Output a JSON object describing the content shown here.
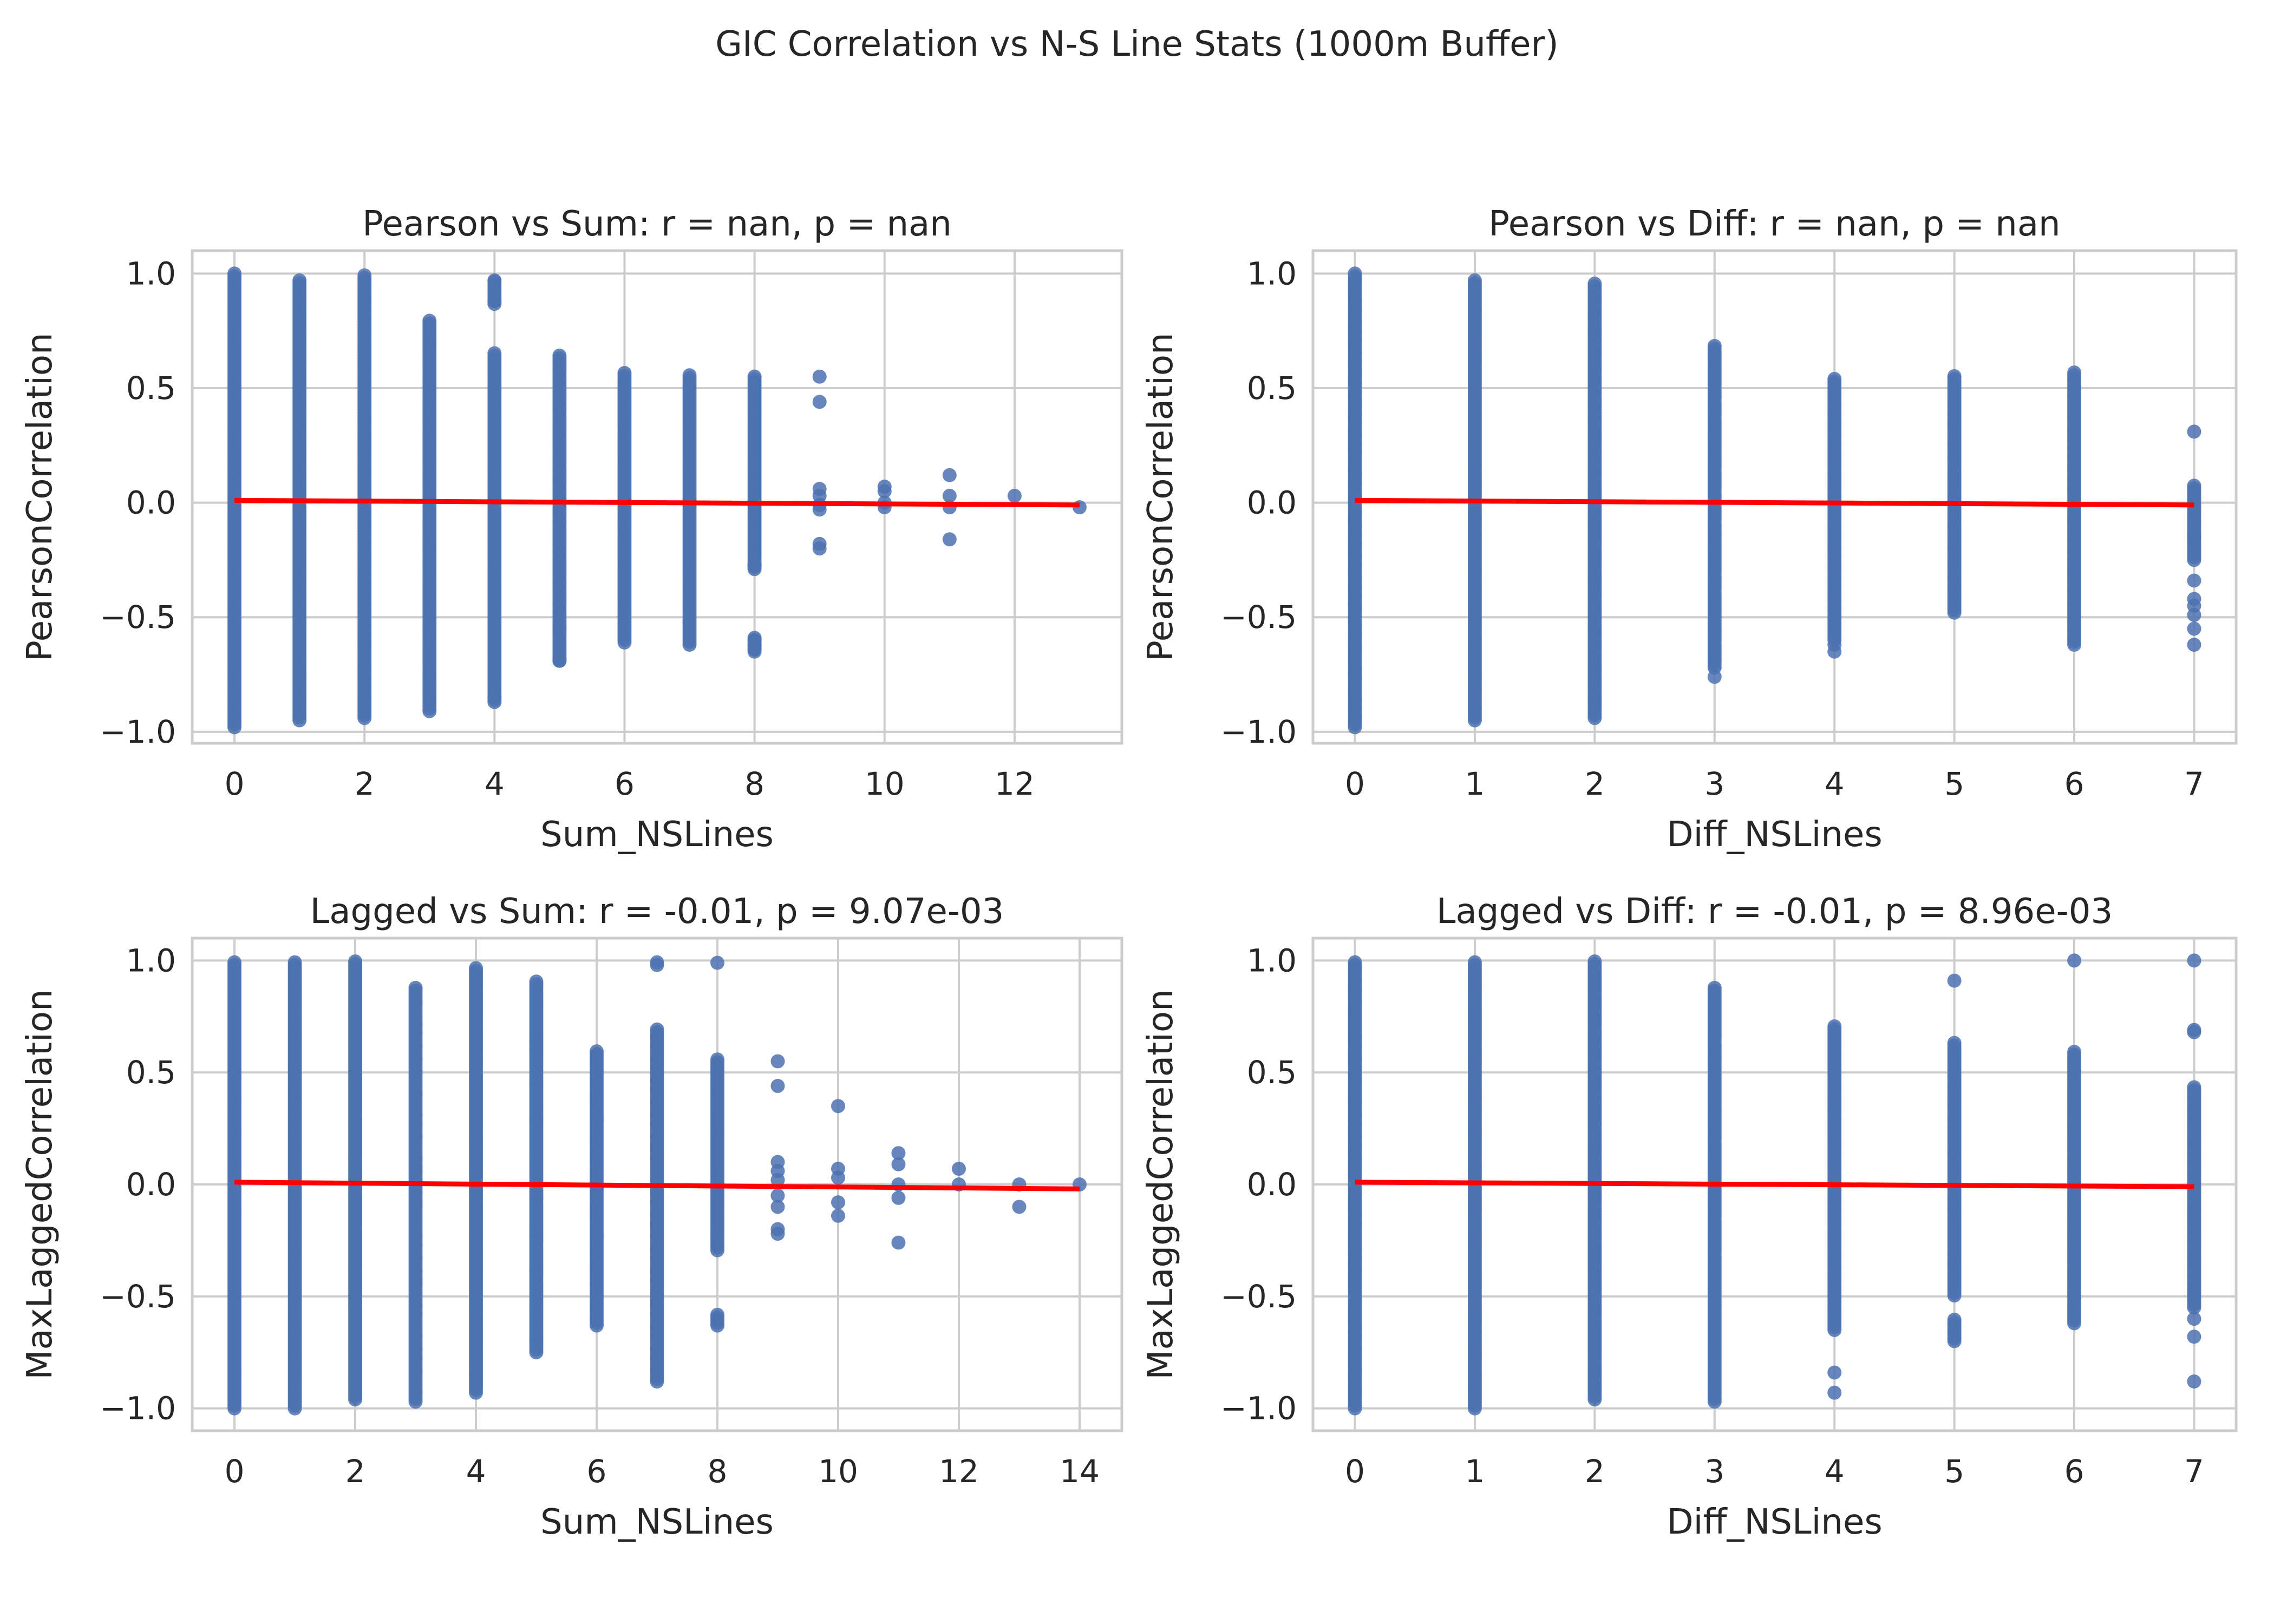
{
  "figure": {
    "title": "GIC Correlation vs N-S Line Stats (1000m Buffer)"
  },
  "colors": {
    "points": "#4c72b0",
    "regression": "#ff0000",
    "grid": "#cccccc",
    "axes_edge": "#cccccc",
    "text": "#262626"
  },
  "chart_data": [
    {
      "type": "scatter",
      "title": "Pearson vs Sum: r = nan, p = nan",
      "xlabel": "Sum_NSLines",
      "ylabel": "PearsonCorrelation",
      "xlim": [
        -0.65,
        13.65
      ],
      "ylim": [
        -1.05,
        1.1
      ],
      "xticks": [
        0,
        2,
        4,
        6,
        8,
        10,
        12
      ],
      "yticks": [
        -1.0,
        -0.5,
        0.0,
        0.5,
        1.0
      ],
      "ytick_labels": [
        "−1.0",
        "−0.5",
        "0.0",
        "0.5",
        "1.0"
      ],
      "grid": true,
      "regression": {
        "x": [
          0,
          13
        ],
        "y": [
          0.01,
          -0.01
        ]
      },
      "columns": [
        {
          "x": 0,
          "min": -0.98,
          "max": 1.0
        },
        {
          "x": 1,
          "min": -0.95,
          "max": 0.97
        },
        {
          "x": 2,
          "min": -0.94,
          "max": 1.0
        },
        {
          "x": 3,
          "min": -0.91,
          "max": 0.8
        },
        {
          "x": 4,
          "min": -0.86,
          "max": 0.97,
          "gaps": [
            [
              0.66,
              0.86
            ]
          ]
        },
        {
          "x": 5,
          "min": -0.69,
          "max": 0.65
        },
        {
          "x": 6,
          "min": -0.61,
          "max": 0.57
        },
        {
          "x": 7,
          "min": -0.62,
          "max": 0.56
        },
        {
          "x": 8,
          "min": -0.65,
          "max": 0.55,
          "gaps": [
            [
              -0.58,
              -0.3
            ]
          ]
        }
      ],
      "points": [
        {
          "x": 4,
          "y": 0.88
        },
        {
          "x": 4,
          "y": 0.97
        },
        {
          "x": 4,
          "y": -0.85
        },
        {
          "x": 4,
          "y": -0.87
        },
        {
          "x": 5,
          "y": -0.68
        },
        {
          "x": 5,
          "y": -0.69
        },
        {
          "x": 5,
          "y": -0.55
        },
        {
          "x": 8,
          "y": -0.6
        },
        {
          "x": 8,
          "y": -0.62
        },
        {
          "x": 8,
          "y": -0.64
        },
        {
          "x": 8,
          "y": -0.27
        },
        {
          "x": 8,
          "y": -0.28
        },
        {
          "x": 9,
          "y": 0.55
        },
        {
          "x": 9,
          "y": 0.44
        },
        {
          "x": 9,
          "y": 0.06
        },
        {
          "x": 9,
          "y": 0.03
        },
        {
          "x": 9,
          "y": -0.01
        },
        {
          "x": 9,
          "y": -0.03
        },
        {
          "x": 9,
          "y": -0.18
        },
        {
          "x": 9,
          "y": -0.2
        },
        {
          "x": 10,
          "y": 0.07
        },
        {
          "x": 10,
          "y": 0.05
        },
        {
          "x": 10,
          "y": 0.0
        },
        {
          "x": 10,
          "y": -0.02
        },
        {
          "x": 11,
          "y": 0.12
        },
        {
          "x": 11,
          "y": 0.03
        },
        {
          "x": 11,
          "y": -0.02
        },
        {
          "x": 11,
          "y": -0.16
        },
        {
          "x": 12,
          "y": 0.03
        },
        {
          "x": 13,
          "y": -0.02
        }
      ]
    },
    {
      "type": "scatter",
      "title": "Pearson vs Diff: r = nan, p = nan",
      "xlabel": "Diff_NSLines",
      "ylabel": "PearsonCorrelation",
      "xlim": [
        -0.35,
        7.35
      ],
      "ylim": [
        -1.05,
        1.1
      ],
      "xticks": [
        0,
        1,
        2,
        3,
        4,
        5,
        6,
        7
      ],
      "yticks": [
        -1.0,
        -0.5,
        0.0,
        0.5,
        1.0
      ],
      "ytick_labels": [
        "−1.0",
        "−0.5",
        "0.0",
        "0.5",
        "1.0"
      ],
      "grid": true,
      "regression": {
        "x": [
          0,
          7
        ],
        "y": [
          0.01,
          -0.01
        ]
      },
      "columns": [
        {
          "x": 0,
          "min": -0.98,
          "max": 1.0
        },
        {
          "x": 1,
          "min": -0.95,
          "max": 0.97
        },
        {
          "x": 2,
          "min": -0.94,
          "max": 0.96
        },
        {
          "x": 3,
          "min": -0.72,
          "max": 0.69
        },
        {
          "x": 4,
          "min": -0.6,
          "max": 0.55
        },
        {
          "x": 5,
          "min": -0.48,
          "max": 0.56
        },
        {
          "x": 6,
          "min": -0.62,
          "max": 0.57
        },
        {
          "x": 7,
          "min": -0.25,
          "max": 0.08
        }
      ],
      "points": [
        {
          "x": 3,
          "y": -0.76
        },
        {
          "x": 4,
          "y": -0.62
        },
        {
          "x": 4,
          "y": -0.65
        },
        {
          "x": 7,
          "y": 0.31
        },
        {
          "x": 7,
          "y": -0.15
        },
        {
          "x": 7,
          "y": -0.34
        },
        {
          "x": 7,
          "y": -0.42
        },
        {
          "x": 7,
          "y": -0.45
        },
        {
          "x": 7,
          "y": -0.49
        },
        {
          "x": 7,
          "y": -0.55
        },
        {
          "x": 7,
          "y": -0.62
        }
      ]
    },
    {
      "type": "scatter",
      "title": "Lagged vs Sum: r = -0.01, p = 9.07e-03",
      "xlabel": "Sum_NSLines",
      "ylabel": "MaxLaggedCorrelation",
      "xlim": [
        -0.7,
        14.7
      ],
      "ylim": [
        -1.1,
        1.1
      ],
      "xticks": [
        0,
        2,
        4,
        6,
        8,
        10,
        12,
        14
      ],
      "yticks": [
        -1.0,
        -0.5,
        0.0,
        0.5,
        1.0
      ],
      "ytick_labels": [
        "−1.0",
        "−0.5",
        "0.0",
        "0.5",
        "1.0"
      ],
      "grid": true,
      "regression": {
        "x": [
          0,
          14
        ],
        "y": [
          0.01,
          -0.02
        ]
      },
      "columns": [
        {
          "x": 0,
          "min": -1.0,
          "max": 1.0
        },
        {
          "x": 1,
          "min": -1.0,
          "max": 1.0
        },
        {
          "x": 2,
          "min": -0.96,
          "max": 1.0
        },
        {
          "x": 3,
          "min": -0.97,
          "max": 0.88
        },
        {
          "x": 4,
          "min": -0.93,
          "max": 0.97
        },
        {
          "x": 5,
          "min": -0.75,
          "max": 0.91
        },
        {
          "x": 6,
          "min": -0.63,
          "max": 0.6
        },
        {
          "x": 7,
          "min": -0.88,
          "max": 1.0,
          "gaps": [
            [
              0.7,
              0.98
            ]
          ]
        },
        {
          "x": 8,
          "min": -0.63,
          "max": 1.0,
          "gaps": [
            [
              0.56,
              0.98
            ],
            [
              -0.58,
              -0.3
            ]
          ]
        }
      ],
      "points": [
        {
          "x": 9,
          "y": 0.55
        },
        {
          "x": 9,
          "y": 0.44
        },
        {
          "x": 9,
          "y": 0.1
        },
        {
          "x": 9,
          "y": 0.06
        },
        {
          "x": 9,
          "y": 0.02
        },
        {
          "x": 9,
          "y": -0.05
        },
        {
          "x": 9,
          "y": -0.1
        },
        {
          "x": 9,
          "y": -0.2
        },
        {
          "x": 9,
          "y": -0.22
        },
        {
          "x": 10,
          "y": 0.35
        },
        {
          "x": 10,
          "y": 0.07
        },
        {
          "x": 10,
          "y": 0.03
        },
        {
          "x": 10,
          "y": -0.08
        },
        {
          "x": 10,
          "y": -0.14
        },
        {
          "x": 11,
          "y": 0.14
        },
        {
          "x": 11,
          "y": 0.09
        },
        {
          "x": 11,
          "y": 0.0
        },
        {
          "x": 11,
          "y": -0.06
        },
        {
          "x": 11,
          "y": -0.26
        },
        {
          "x": 12,
          "y": 0.07
        },
        {
          "x": 12,
          "y": 0.0
        },
        {
          "x": 13,
          "y": 0.0
        },
        {
          "x": 13,
          "y": -0.1
        },
        {
          "x": 14,
          "y": 0.0
        }
      ]
    },
    {
      "type": "scatter",
      "title": "Lagged vs Diff: r = -0.01, p = 8.96e-03",
      "xlabel": "Diff_NSLines",
      "ylabel": "MaxLaggedCorrelation",
      "xlim": [
        -0.35,
        7.35
      ],
      "ylim": [
        -1.1,
        1.1
      ],
      "xticks": [
        0,
        1,
        2,
        3,
        4,
        5,
        6,
        7
      ],
      "yticks": [
        -1.0,
        -0.5,
        0.0,
        0.5,
        1.0
      ],
      "ytick_labels": [
        "−1.0",
        "−0.5",
        "0.0",
        "0.5",
        "1.0"
      ],
      "grid": true,
      "regression": {
        "x": [
          0,
          7
        ],
        "y": [
          0.01,
          -0.01
        ]
      },
      "columns": [
        {
          "x": 0,
          "min": -1.0,
          "max": 1.0
        },
        {
          "x": 1,
          "min": -1.0,
          "max": 1.0
        },
        {
          "x": 2,
          "min": -0.96,
          "max": 1.0
        },
        {
          "x": 3,
          "min": -0.97,
          "max": 0.88
        },
        {
          "x": 4,
          "min": -0.65,
          "max": 0.71
        },
        {
          "x": 5,
          "min": -0.7,
          "max": 0.64,
          "gaps": [
            [
              -0.6,
              -0.5
            ]
          ]
        },
        {
          "x": 6,
          "min": -0.62,
          "max": 0.6
        },
        {
          "x": 7,
          "min": -0.55,
          "max": 0.44
        }
      ],
      "points": [
        {
          "x": 4,
          "y": -0.84
        },
        {
          "x": 4,
          "y": -0.93
        },
        {
          "x": 5,
          "y": 0.91
        },
        {
          "x": 6,
          "y": 1.0
        },
        {
          "x": 7,
          "y": 1.0
        },
        {
          "x": 7,
          "y": 0.69
        },
        {
          "x": 7,
          "y": 0.68
        },
        {
          "x": 7,
          "y": -0.6
        },
        {
          "x": 7,
          "y": -0.68
        },
        {
          "x": 7,
          "y": -0.88
        }
      ]
    }
  ]
}
